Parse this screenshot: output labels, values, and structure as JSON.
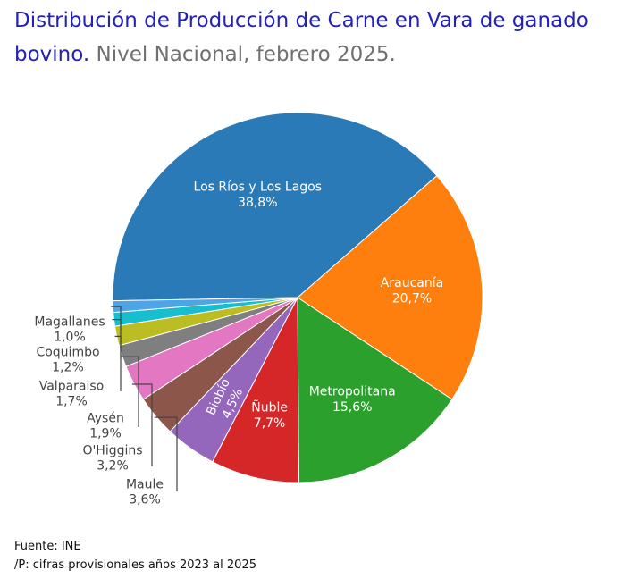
{
  "title": {
    "main": "Distribución de Producción de Carne en Vara de ganado bovino",
    "subtitle": "Nivel Nacional, febrero 2025."
  },
  "chart_data": {
    "type": "pie",
    "title": "Distribución de Producción de Carne en Vara de ganado bovino. Nivel Nacional, febrero 2025.",
    "slices": [
      {
        "label": "Los Ríos y Los Lagos",
        "value": 38.8,
        "value_label": "38,8%",
        "color": "#2a7ab8",
        "text_color": "#ffffff"
      },
      {
        "label": "Araucanía",
        "value": 20.7,
        "value_label": "20,7%",
        "color": "#ff7f0e",
        "text_color": "#ffffff"
      },
      {
        "label": "Metropolitana",
        "value": 15.6,
        "value_label": "15,6%",
        "color": "#2ca02c",
        "text_color": "#ffffff"
      },
      {
        "label": "Ñuble",
        "value": 7.7,
        "value_label": "7,7%",
        "color": "#d62728",
        "text_color": "#ffffff"
      },
      {
        "label": "Biobío",
        "value": 4.5,
        "value_label": "4,5%",
        "color": "#9467bd",
        "text_color": "#ffffff"
      },
      {
        "label": "Maule",
        "value": 3.6,
        "value_label": "3,6%",
        "color": "#8c564b",
        "text_color": "#444444"
      },
      {
        "label": "O'Higgins",
        "value": 3.2,
        "value_label": "3,2%",
        "color": "#e377c2",
        "text_color": "#444444"
      },
      {
        "label": "Aysén",
        "value": 1.9,
        "value_label": "1,9%",
        "color": "#7f7f7f",
        "text_color": "#444444"
      },
      {
        "label": "Valparaiso",
        "value": 1.7,
        "value_label": "1,7%",
        "color": "#bcbd22",
        "text_color": "#444444"
      },
      {
        "label": "Coquimbo",
        "value": 1.2,
        "value_label": "1,2%",
        "color": "#17becf",
        "text_color": "#444444"
      },
      {
        "label": "Magallanes",
        "value": 1.0,
        "value_label": "1,0%",
        "color": "#4ea5e6",
        "text_color": "#444444"
      }
    ]
  },
  "footer": {
    "source": "Fuente: INE",
    "note": "/P: cifras provisionales años 2023 al 2025"
  }
}
